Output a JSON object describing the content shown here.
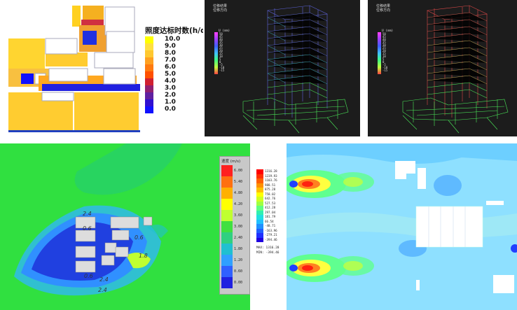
{
  "illuminance_panel": {
    "legend_title": "照度达标时数(h/d)",
    "legend_values": [
      "10.0",
      "9.0",
      "8.0",
      "7.0",
      "6.0",
      "5.0",
      "4.0",
      "3.0",
      "2.0",
      "1.0",
      "0.0"
    ],
    "legend_colors": [
      "#ffff00",
      "#ffe040",
      "#ffc830",
      "#ffa020",
      "#ff7a10",
      "#ff5000",
      "#d02030",
      "#902070",
      "#6020a0",
      "#3010d0",
      "#1010ff"
    ]
  },
  "structure_left": {
    "header_lines": [
      "位移结果",
      "位移方向"
    ],
    "legend_title": "U (mm)",
    "legend_values": [
      "50",
      "45",
      "40",
      "35",
      "30",
      "25",
      "20",
      "15",
      "10",
      "5",
      "0",
      "-5",
      "-10",
      "-15",
      "-20"
    ]
  },
  "structure_right": {
    "header_lines": [
      "位移结果",
      "位移方向"
    ],
    "legend_title": "U (mm)",
    "legend_values": [
      "50",
      "45",
      "40",
      "35",
      "30",
      "25",
      "20",
      "15",
      "10",
      "5",
      "0",
      "-5",
      "-10",
      "-15",
      "-20"
    ]
  },
  "wind_panel": {
    "legend_title": "速度 (m/s)",
    "legend_values": [
      "6.00",
      "5.40",
      "4.80",
      "4.20",
      "3.60",
      "3.00",
      "2.40",
      "1.80",
      "1.20",
      "0.60",
      "0.00"
    ],
    "legend_colors": [
      "#ff2020",
      "#ff7010",
      "#ffb000",
      "#ffff00",
      "#c0ff30",
      "#40e040",
      "#30d080",
      "#20c0d0",
      "#30a0ff",
      "#3060ff",
      "#2020e0"
    ],
    "contour_labels": [
      "2.4",
      "0.6",
      "0.6",
      "2.4",
      "0.6",
      "1.8",
      "2.4"
    ]
  },
  "pressure_panel": {
    "legend_values": [
      "1316.28",
      "1239.93",
      "1103.76",
      "988.51",
      "875.28",
      "758.02",
      "642.76",
      "527.53",
      "412.28",
      "297.04",
      "181.79",
      "66.54",
      "-48.71",
      "-163.96",
      "-279.21",
      "-394.46"
    ],
    "legend_colors": [
      "#ff0000",
      "#ff3000",
      "#ff6000",
      "#ff9000",
      "#ffc000",
      "#ffff00",
      "#d0ff20",
      "#a0ff40",
      "#60ff80",
      "#30f0b0",
      "#20e0e0",
      "#20c0ff",
      "#2090ff",
      "#2060ff",
      "#2030ff",
      "#2000e0"
    ],
    "max_label": "MAX: 1316.28",
    "min_label": "MIN: -394.46"
  }
}
